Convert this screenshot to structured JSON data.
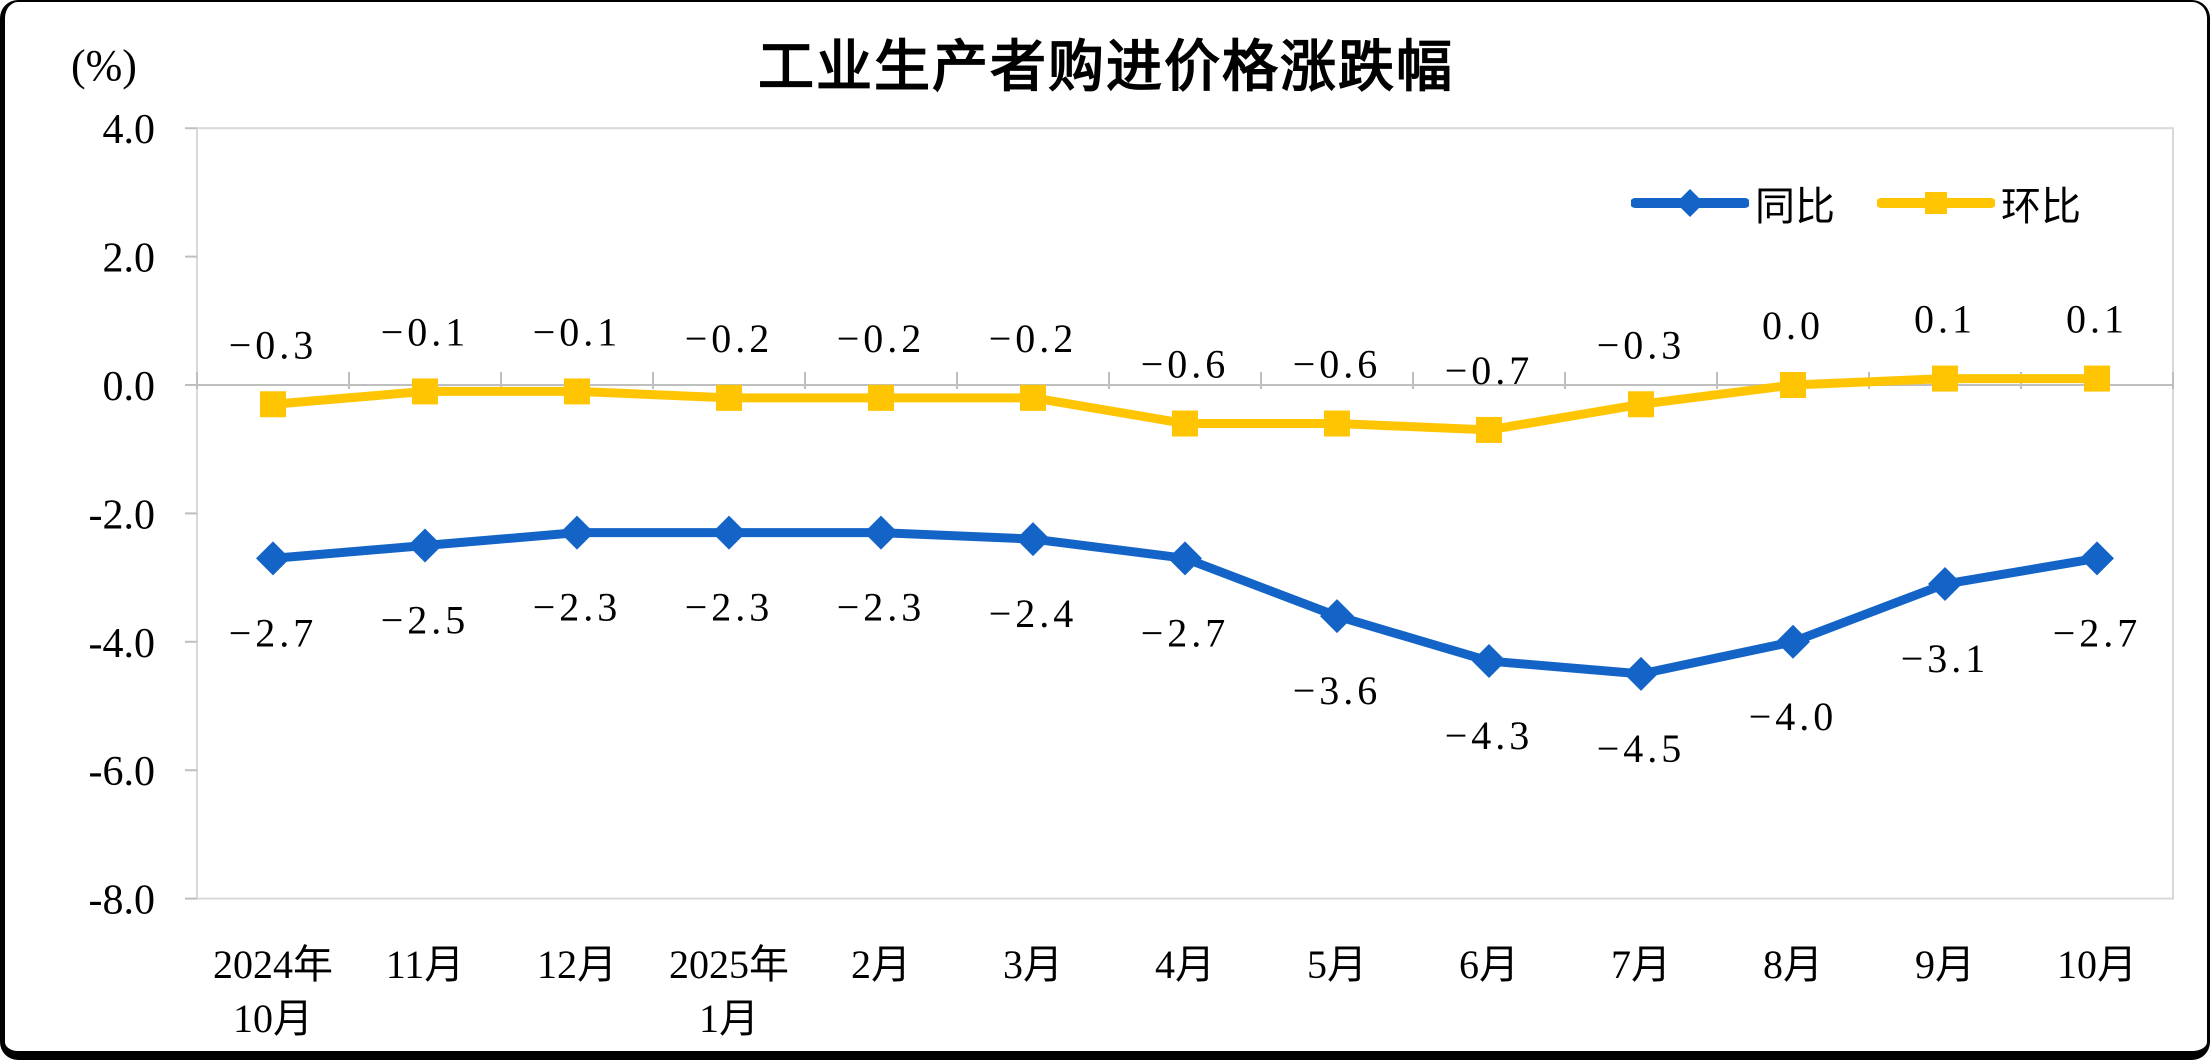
{
  "chart_data": {
    "type": "line",
    "title": "工业生产者购进价格涨跌幅",
    "ylabel": "(%)",
    "xlabel": "",
    "categories": [
      "2024年\n10月",
      "11月",
      "12月",
      "2025年\n1月",
      "2月",
      "3月",
      "4月",
      "5月",
      "6月",
      "7月",
      "8月",
      "9月",
      "10月"
    ],
    "series": [
      {
        "name": "同比",
        "color": "#1464C8",
        "marker": "diamond",
        "data_label_position": "below",
        "values": [
          -2.7,
          -2.5,
          -2.3,
          -2.3,
          -2.3,
          -2.4,
          -2.7,
          -3.6,
          -4.3,
          -4.5,
          -4.0,
          -3.1,
          -2.7
        ]
      },
      {
        "name": "环比",
        "color": "#FFC503",
        "marker": "square",
        "data_label_position": "above",
        "values": [
          -0.3,
          -0.1,
          -0.1,
          -0.2,
          -0.2,
          -0.2,
          -0.6,
          -0.6,
          -0.7,
          -0.3,
          0.0,
          0.1,
          0.1
        ]
      }
    ],
    "ylim": [
      -8.0,
      4.0
    ],
    "ytick_step": 2.0,
    "ytick_labels": [
      "4.0",
      "2.0",
      "0.0",
      "-2.0",
      "-4.0",
      "-6.0",
      "-8.0"
    ],
    "grid": false,
    "legend_position": "top-right",
    "axis_color": "#BFBFBF",
    "plot_border_color": "#D9D9D9"
  }
}
